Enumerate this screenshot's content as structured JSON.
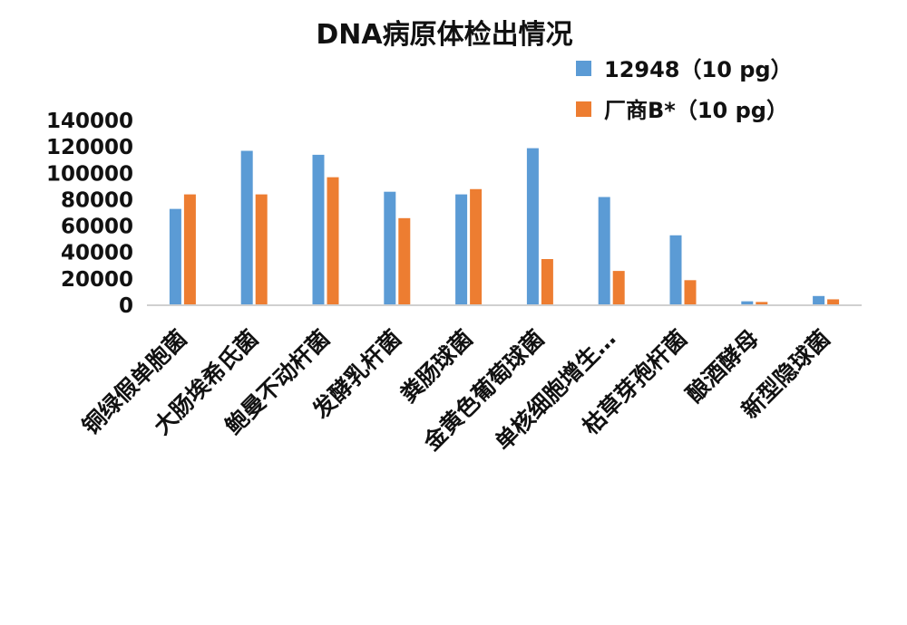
{
  "chart_data": {
    "type": "bar",
    "title": "DNA病原体检出情况",
    "xlabel": "",
    "ylabel": "",
    "categories": [
      "铜绿假单胞菌",
      "大肠埃希氏菌",
      "鲍曼不动杆菌",
      "发酵乳杆菌",
      "粪肠球菌",
      "金黄色葡萄球菌",
      "单核细胞增生…",
      "枯草芽孢杆菌",
      "酿酒酵母",
      "新型隐球菌"
    ],
    "series": [
      {
        "name": "12948（10 pg）",
        "color": "#5b9bd5",
        "values": [
          73000,
          117000,
          114000,
          86000,
          84000,
          119000,
          82000,
          53000,
          3000,
          7000
        ]
      },
      {
        "name": "厂商B*（10 pg）",
        "color": "#ed7d31",
        "values": [
          84000,
          84000,
          97000,
          66000,
          88000,
          35000,
          26000,
          19000,
          2500,
          4500
        ]
      }
    ],
    "yticks": [
      "0",
      "20000",
      "40000",
      "60000",
      "80000",
      "100000",
      "120000",
      "140000"
    ],
    "ylim": [
      0,
      140000
    ],
    "grid": false,
    "legend_position": "top-right"
  }
}
